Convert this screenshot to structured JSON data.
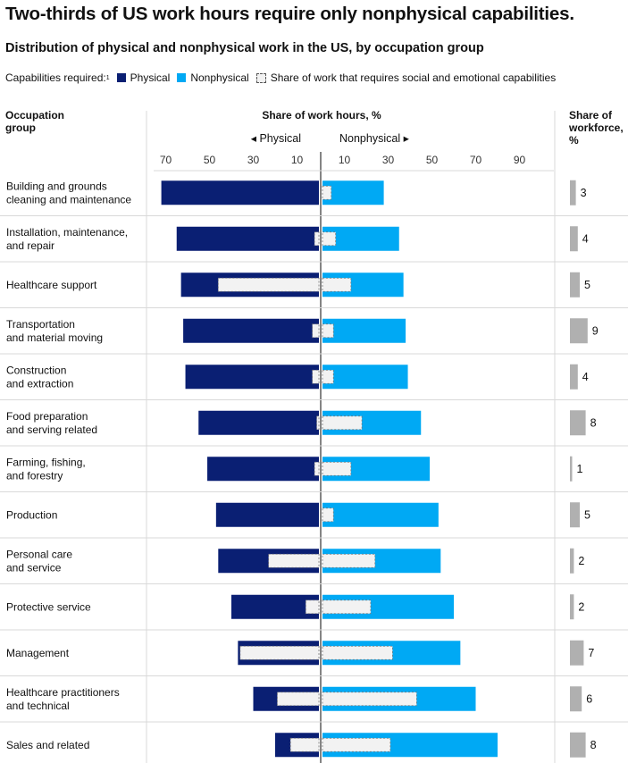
{
  "title": "Two-thirds of US work hours require only nonphysical capabilities.",
  "subtitle": "Distribution of physical and nonphysical work in the US, by occupation group",
  "legend": {
    "prefix": "Capabilities required:",
    "footnote_mark": "1",
    "physical": "Physical",
    "nonphysical": "Nonphysical",
    "social": "Share of work that requires social and emotional capabilities"
  },
  "headers": {
    "occupation": "Occupation group",
    "share_hours": "Share of work hours, %",
    "physical_dir": "◂ Physical",
    "nonphysical_dir": "Nonphysical ▸",
    "share_workforce": "Share of workforce, %"
  },
  "colors": {
    "physical": "#0a1f73",
    "nonphysical": "#00a9f4",
    "social": "#f2f2f2",
    "workforce": "#b0b0b0",
    "grid": "#d9d9d9"
  },
  "chart_data": {
    "type": "bar",
    "orientation": "horizontal-diverging",
    "title": "Two-thirds of US work hours require only nonphysical capabilities.",
    "xlabel": "Share of work hours, %",
    "left_ticks": [
      "70",
      "50",
      "30",
      "10"
    ],
    "right_ticks": [
      "10",
      "30",
      "50",
      "70",
      "90"
    ],
    "left_tick_values": [
      70,
      50,
      30,
      10
    ],
    "right_tick_values": [
      10,
      30,
      50,
      70,
      90
    ],
    "categories": [
      "Building and grounds cleaning and maintenance",
      "Installation, maintenance, and repair",
      "Healthcare support",
      "Transportation and material moving",
      "Construction and extraction",
      "Food preparation and serving related",
      "Farming, fishing, and forestry",
      "Production",
      "Personal care and service",
      "Protective service",
      "Management",
      "Healthcare practitioners and technical",
      "Sales and related"
    ],
    "category_lines": [
      [
        "Building and grounds",
        "cleaning and maintenance"
      ],
      [
        "Installation, maintenance,",
        "and repair"
      ],
      [
        "Healthcare support"
      ],
      [
        "Transportation",
        "and material moving"
      ],
      [
        "Construction",
        "and extraction"
      ],
      [
        "Food preparation",
        "and serving related"
      ],
      [
        "Farming, fishing,",
        "and forestry"
      ],
      [
        "Production"
      ],
      [
        "Personal care",
        "and service"
      ],
      [
        "Protective service"
      ],
      [
        "Management"
      ],
      [
        "Healthcare practitioners",
        "and technical"
      ],
      [
        "Sales and related"
      ]
    ],
    "series": [
      {
        "name": "Physical",
        "values": [
          72,
          65,
          63,
          62,
          61,
          55,
          51,
          47,
          46,
          40,
          37,
          30,
          20
        ]
      },
      {
        "name": "Physical - social and emotional",
        "values": [
          0,
          2,
          46,
          3,
          3,
          1,
          2,
          0,
          23,
          6,
          36,
          19,
          13
        ]
      },
      {
        "name": "Nonphysical",
        "values": [
          28,
          35,
          37,
          38,
          39,
          45,
          49,
          53,
          54,
          60,
          63,
          70,
          80
        ]
      },
      {
        "name": "Nonphysical - social and emotional",
        "values": [
          4,
          6,
          13,
          5,
          5,
          18,
          13,
          5,
          24,
          22,
          32,
          43,
          31
        ]
      },
      {
        "name": "Share of workforce",
        "values": [
          3,
          4,
          5,
          9,
          4,
          8,
          1,
          5,
          2,
          2,
          7,
          6,
          8
        ]
      }
    ],
    "workforce_labels": [
      "3",
      "4",
      "5",
      "9",
      "4",
      "8",
      "1",
      "5",
      "2",
      "2",
      "7",
      "6",
      "8"
    ]
  }
}
